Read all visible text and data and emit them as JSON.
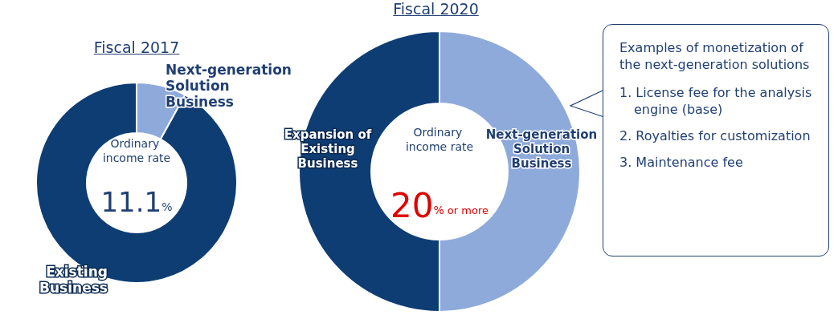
{
  "chart_data": [
    {
      "type": "donut",
      "title": "Fiscal 2017",
      "categories": [
        "Next-generation Solution Business",
        "Existing Business"
      ],
      "values": [
        8,
        92
      ],
      "colors": [
        "#8eaadb",
        "#0e3d73"
      ],
      "annotations": [
        "Ordinary income rate",
        "11.1%"
      ]
    },
    {
      "type": "donut",
      "title": "Fiscal 2020",
      "categories": [
        "Next-generation Solution Business",
        "Expansion of Existing Business"
      ],
      "values": [
        50,
        50
      ],
      "colors": [
        "#8eaadb",
        "#0e3d73"
      ],
      "annotations": [
        "Ordinary income rate",
        "20% or more"
      ]
    },
    {
      "type": "other",
      "title": "Examples of monetization of the next-generation solutions",
      "annotations": [
        "1. License fee for the analysis engine (base)",
        "2. Royalties for customization",
        "3. Maintenance fee"
      ]
    }
  ]
}
